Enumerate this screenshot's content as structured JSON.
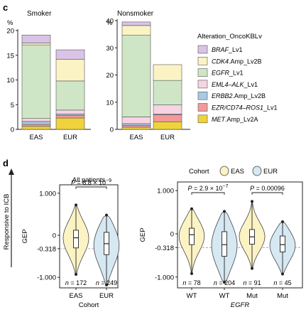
{
  "colors": {
    "BRAF": "#d9c3e6",
    "CDK4": "#fbf3c4",
    "EGFR": "#cfe6c6",
    "EML4": "#f7d3e3",
    "ERBB2": "#a9c9e4",
    "EZR": "#f29a9a",
    "MET": "#f0d23c",
    "EAS": "#fbf3c4",
    "EUR": "#d6e8f2"
  },
  "panel_c": {
    "letter": "c",
    "legend_title": "Alteration_OncoKBLv",
    "legend_items": [
      {
        "key": "BRAF",
        "italic": "BRAF",
        "rest": "_Lv1"
      },
      {
        "key": "CDK4",
        "italic": "CDK4",
        "rest": ".Amp_Lv2B"
      },
      {
        "key": "EGFR",
        "italic": "EGFR",
        "rest": "_Lv1"
      },
      {
        "key": "EML4",
        "italic": "EML4–ALK",
        "rest": "_Lv1"
      },
      {
        "key": "ERBB2",
        "italic": "ERBB2",
        "rest": ".Amp_Lv2B"
      },
      {
        "key": "EZR",
        "italic": "EZR/CD74–ROS1",
        "rest": "_Lv1"
      },
      {
        "key": "MET",
        "italic": "MET",
        "rest": ".Amp_Lv2A"
      }
    ]
  },
  "panel_d": {
    "letter": "d",
    "y_arrow_label": "Responsive to ICB"
  },
  "chart_data": [
    {
      "type": "bar",
      "stacked": true,
      "title": "Smoker",
      "ylabel": "%",
      "ylim": [
        0,
        20
      ],
      "yticks": [
        "0",
        "5",
        "10",
        "15",
        "20"
      ],
      "categories": [
        "EAS",
        "EUR"
      ],
      "series": [
        {
          "name": "MET.Amp_Lv2A",
          "key": "MET",
          "values": [
            0.6,
            2.3
          ]
        },
        {
          "name": "EZR/CD74–ROS1_Lv1",
          "key": "EZR",
          "values": [
            0.4,
            0.5
          ]
        },
        {
          "name": "ERBB2.Amp_Lv2B",
          "key": "ERBB2",
          "values": [
            0.6,
            0.3
          ]
        },
        {
          "name": "EML4–ALK_Lv1",
          "key": "EML4",
          "values": [
            0.6,
            0.8
          ]
        },
        {
          "name": "EGFR_Lv1",
          "key": "EGFR",
          "values": [
            14.9,
            5.9
          ]
        },
        {
          "name": "CDK4.Amp_Lv2B",
          "key": "CDK4",
          "values": [
            0.4,
            4.4
          ]
        },
        {
          "name": "BRAF_Lv1",
          "key": "BRAF",
          "values": [
            1.6,
            1.9
          ]
        }
      ]
    },
    {
      "type": "bar",
      "stacked": true,
      "title": "Nonsmoker",
      "ylabel": "%",
      "ylim": [
        0,
        40
      ],
      "yticks": [
        "0",
        "10",
        "20",
        "30",
        "40"
      ],
      "categories": [
        "EAS",
        "EUR"
      ],
      "series": [
        {
          "name": "MET.Amp_Lv2A",
          "key": "MET",
          "values": [
            0.8,
            2.8
          ]
        },
        {
          "name": "EZR/CD74–ROS1_Lv1",
          "key": "EZR",
          "values": [
            0.6,
            2.6
          ]
        },
        {
          "name": "ERBB2.Amp_Lv2B",
          "key": "ERBB2",
          "values": [
            0.7,
            0.2
          ]
        },
        {
          "name": "EML4–ALK_Lv1",
          "key": "EML4",
          "values": [
            2.5,
            3.4
          ]
        },
        {
          "name": "EGFR_Lv1",
          "key": "EGFR",
          "values": [
            30.0,
            9.0
          ]
        },
        {
          "name": "CDK4.Amp_Lv2B",
          "key": "CDK4",
          "values": [
            3.6,
            5.8
          ]
        },
        {
          "name": "BRAF_Lv1",
          "key": "BRAF",
          "values": [
            1.3,
            0.0
          ]
        }
      ]
    },
    {
      "type": "violin",
      "title": "All patients",
      "xlabel": "Cohort",
      "ylabel": "GEP",
      "ylim": [
        -1.25,
        1.2
      ],
      "yticks": [
        {
          "v": 1.0,
          "label": "1.000"
        },
        {
          "v": 0,
          "label": "0"
        },
        {
          "v": -0.318,
          "label": "-0.318"
        },
        {
          "v": -1.0,
          "label": "-1.000"
        }
      ],
      "reference_line": -0.318,
      "categories": [
        "EAS",
        "EUR"
      ],
      "groups": [
        {
          "label": "EAS",
          "cohort": "EAS",
          "median": -0.06,
          "q1": -0.3,
          "q3": 0.12,
          "min": -0.93,
          "max": 0.72,
          "n": "n = 172"
        },
        {
          "label": "EUR",
          "cohort": "EUR",
          "median": -0.2,
          "q1": -0.46,
          "q3": 0.07,
          "min": -1.18,
          "max": 0.48,
          "n": "n = 249"
        }
      ],
      "annotations": [
        {
          "from": 0,
          "to": 1,
          "text": "P = 8.8 × 10",
          "sup": "−9"
        }
      ]
    },
    {
      "type": "violin",
      "legend_title": "Cohort",
      "legend": [
        {
          "label": "EAS",
          "cohort": "EAS"
        },
        {
          "label": "EUR",
          "cohort": "EUR"
        }
      ],
      "xlabel": "EGFR",
      "ylabel": "GEP",
      "ylim": [
        -1.25,
        1.2
      ],
      "yticks": [
        {
          "v": 1.0,
          "label": "1.000"
        },
        {
          "v": 0,
          "label": "0"
        },
        {
          "v": -0.318,
          "label": "-0.318"
        },
        {
          "v": -1.0,
          "label": "-1.000"
        }
      ],
      "reference_line": -0.318,
      "categories": [
        "WT",
        "WT",
        "Mut",
        "Mut"
      ],
      "groups": [
        {
          "label": "WT",
          "cohort": "EAS",
          "median": -0.02,
          "q1": -0.25,
          "q3": 0.13,
          "min": -0.92,
          "max": 0.58,
          "n": "n = 78"
        },
        {
          "label": "WT",
          "cohort": "EUR",
          "median": -0.25,
          "q1": -0.52,
          "q3": 0.05,
          "min": -1.12,
          "max": 0.52,
          "n": "n = 204"
        },
        {
          "label": "Mut",
          "cohort": "EAS",
          "median": -0.07,
          "q1": -0.24,
          "q3": 0.1,
          "min": -0.8,
          "max": 0.75,
          "n": "n = 91"
        },
        {
          "label": "Mut",
          "cohort": "EUR",
          "median": -0.25,
          "q1": -0.42,
          "q3": -0.05,
          "min": -0.93,
          "max": 0.28,
          "n": "n = 45"
        }
      ],
      "annotations": [
        {
          "from": 0,
          "to": 1,
          "text": "P = 2.9 × 10",
          "sup": "−7"
        },
        {
          "from": 2,
          "to": 3,
          "text": "P = 0.00096",
          "sup": ""
        }
      ]
    }
  ]
}
